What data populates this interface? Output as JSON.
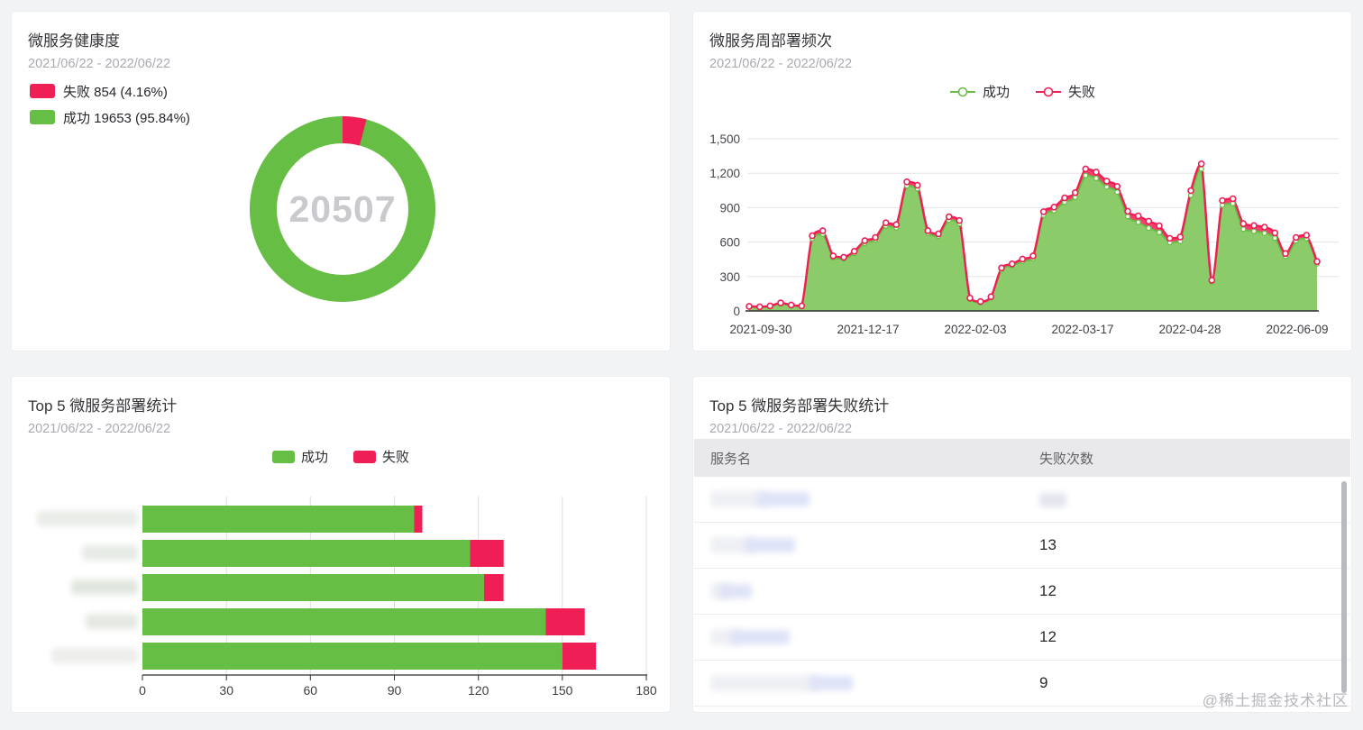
{
  "page": {
    "watermark": "@稀土掘金技术社区"
  },
  "colors": {
    "green": "#66BE44",
    "green_area": "#8CCB69",
    "red": "#EF1E55",
    "red_band": "#F4406E"
  },
  "chart_data": [
    {
      "type": "pie",
      "title": "微服务健康度",
      "subtitle": "2021/06/22 - 2022/06/22",
      "center_total": "20507",
      "legend_labels": [
        "失败 854 (4.16%)",
        "成功 19653 (95.84%)"
      ],
      "slices": [
        {
          "label": "失败",
          "value": 854,
          "pct": 4.16,
          "color": "#EF1E55"
        },
        {
          "label": "成功",
          "value": 19653,
          "pct": 95.84,
          "color": "#66BE44"
        }
      ]
    },
    {
      "type": "area",
      "title": "微服务周部署频次",
      "subtitle": "2021/06/22 - 2022/06/22",
      "legend": [
        "成功",
        "失败"
      ],
      "stacked": true,
      "grid": true,
      "ylim": [
        0,
        1500
      ],
      "y_ticks": [
        "0",
        "300",
        "600",
        "900",
        "1,200",
        "1,500"
      ],
      "x_tick_labels": [
        "2021-09-30",
        "2021-12-17",
        "2022-02-03",
        "2022-03-17",
        "2022-04-28",
        "2022-06-09"
      ],
      "series": [
        {
          "name": "成功",
          "values": [
            35,
            32,
            39,
            62,
            46,
            39,
            630,
            670,
            465,
            454,
            502,
            590,
            620,
            740,
            726,
            1090,
            1065,
            678,
            652,
            790,
            760,
            102,
            74,
            114,
            357,
            394,
            432,
            458,
            835,
            873,
            947,
            990,
            1180,
            1155,
            1080,
            1035,
            823,
            773,
            722,
            684,
            597,
            607,
            1008,
            1237,
            253,
            922,
            936,
            712,
            694,
            678,
            635,
            475,
            610,
            632,
            412
          ]
        },
        {
          "name": "失败",
          "values": [
            5,
            4,
            5,
            8,
            6,
            5,
            25,
            28,
            15,
            14,
            18,
            22,
            20,
            28,
            26,
            35,
            30,
            22,
            20,
            30,
            28,
            10,
            8,
            10,
            18,
            16,
            20,
            22,
            30,
            32,
            38,
            40,
            58,
            55,
            52,
            50,
            45,
            55,
            60,
            58,
            35,
            38,
            40,
            45,
            15,
            40,
            42,
            48,
            50,
            52,
            45,
            25,
            30,
            28,
            18
          ]
        }
      ]
    },
    {
      "type": "bar",
      "orientation": "horizontal",
      "title": "Top 5 微服务部署统计",
      "subtitle": "2021/06/22 - 2022/06/22",
      "legend": [
        "成功",
        "失败"
      ],
      "xlim": [
        0,
        180
      ],
      "x_ticks": [
        0,
        30,
        60,
        90,
        120,
        150,
        180
      ],
      "categories_redacted": true,
      "series": [
        {
          "name": "成功",
          "values": [
            97,
            117,
            122,
            144,
            150
          ]
        },
        {
          "name": "失败",
          "values": [
            3,
            12,
            7,
            14,
            12
          ]
        }
      ]
    },
    {
      "type": "table",
      "title": "Top 5 微服务部署失败统计",
      "subtitle": "2021/06/22 - 2022/06/22",
      "columns": [
        "服务名",
        "失败次数"
      ],
      "rows": [
        {
          "name": "",
          "name_redacted": true,
          "count": "",
          "count_redacted": true
        },
        {
          "name": "",
          "name_redacted": true,
          "count": "13",
          "count_redacted": false
        },
        {
          "name": "",
          "name_redacted": true,
          "count": "12",
          "count_redacted": false
        },
        {
          "name": "",
          "name_redacted": true,
          "count": "12",
          "count_redacted": false
        },
        {
          "name": "",
          "name_redacted": true,
          "count": "9",
          "count_redacted": false
        }
      ]
    }
  ]
}
